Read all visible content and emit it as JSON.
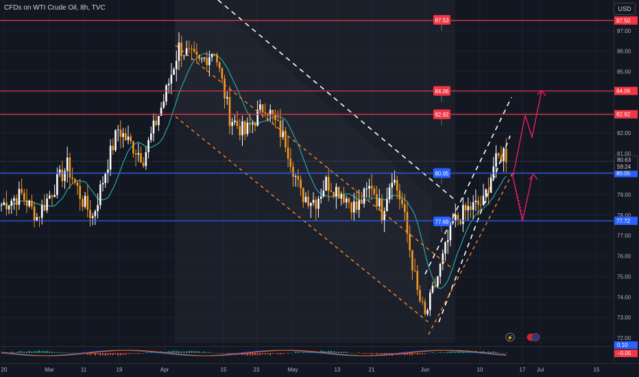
{
  "header": {
    "title": "CFDs on WTI Crude Oil, 8h, TVC",
    "currency": "USD"
  },
  "colors": {
    "background": "#131722",
    "up": "#ffffff",
    "down": "#f59a23",
    "ma": "#2aa6a6",
    "resistance": "#f23645",
    "support": "#2962ff",
    "trend": "#ff8a1f",
    "forecast": "#e91e63",
    "macd": "#2962ff",
    "signal": "#ff6d00"
  },
  "chart_data": {
    "type": "candlestick",
    "ylim": [
      71.6,
      88.5
    ],
    "y_ticks": [
      "72.00",
      "73.00",
      "74.00",
      "75.00",
      "76.00",
      "77.00",
      "78.00",
      "79.00",
      "80.00",
      "81.00",
      "82.00",
      "83.00",
      "84.00",
      "85.00",
      "86.00",
      "87.00"
    ],
    "x_ticks": [
      "20",
      "Mar",
      "11",
      "19",
      "Apr",
      "15",
      "23",
      "May",
      "13",
      "21",
      "Jun",
      "10",
      "17",
      "Jul",
      "15"
    ],
    "horizontal_levels": [
      {
        "value": 87.5,
        "label": "87.50",
        "color": "resistance"
      },
      {
        "value": 84.06,
        "label": "84.06",
        "color": "resistance"
      },
      {
        "value": 82.92,
        "label": "82.92",
        "color": "resistance"
      },
      {
        "value": 80.05,
        "label": "80.05",
        "color": "support"
      },
      {
        "value": 77.72,
        "label": "77.72",
        "color": "support"
      }
    ],
    "level_tags": [
      {
        "value": 87.53,
        "label": "87.53",
        "color": "resistance"
      },
      {
        "value": 84.06,
        "label": "84.06",
        "color": "resistance"
      },
      {
        "value": 82.92,
        "label": "82.92",
        "color": "resistance"
      },
      {
        "value": 80.05,
        "label": "80.05",
        "color": "support"
      },
      {
        "value": 77.69,
        "label": "77.69",
        "color": "support"
      }
    ],
    "last_price": {
      "value": 80.63,
      "label": "80.63",
      "countdown": "59:24"
    },
    "macd_labels": [
      "0.10",
      "−0.05"
    ],
    "price_waypoints": [
      [
        0,
        78.5
      ],
      [
        8,
        79.0
      ],
      [
        14,
        77.9
      ],
      [
        22,
        79.6
      ],
      [
        26,
        80.4
      ],
      [
        32,
        78.7
      ],
      [
        36,
        77.9
      ],
      [
        42,
        80.6
      ],
      [
        46,
        82.2
      ],
      [
        50,
        81.6
      ],
      [
        56,
        80.8
      ],
      [
        64,
        83.6
      ],
      [
        70,
        86.2
      ],
      [
        78,
        85.4
      ],
      [
        84,
        86.1
      ],
      [
        90,
        82.8
      ],
      [
        96,
        82.0
      ],
      [
        104,
        83.4
      ],
      [
        112,
        81.6
      ],
      [
        118,
        79.0
      ],
      [
        124,
        78.7
      ],
      [
        128,
        79.6
      ],
      [
        134,
        79.1
      ],
      [
        140,
        78.3
      ],
      [
        146,
        79.5
      ],
      [
        150,
        78.1
      ],
      [
        154,
        80.0
      ],
      [
        158,
        78.5
      ],
      [
        164,
        74.2
      ],
      [
        167,
        73.0
      ],
      [
        172,
        75.0
      ],
      [
        178,
        77.6
      ],
      [
        184,
        78.3
      ],
      [
        190,
        78.6
      ],
      [
        194,
        80.4
      ],
      [
        198,
        81.1
      ],
      [
        200,
        80.63
      ]
    ]
  }
}
